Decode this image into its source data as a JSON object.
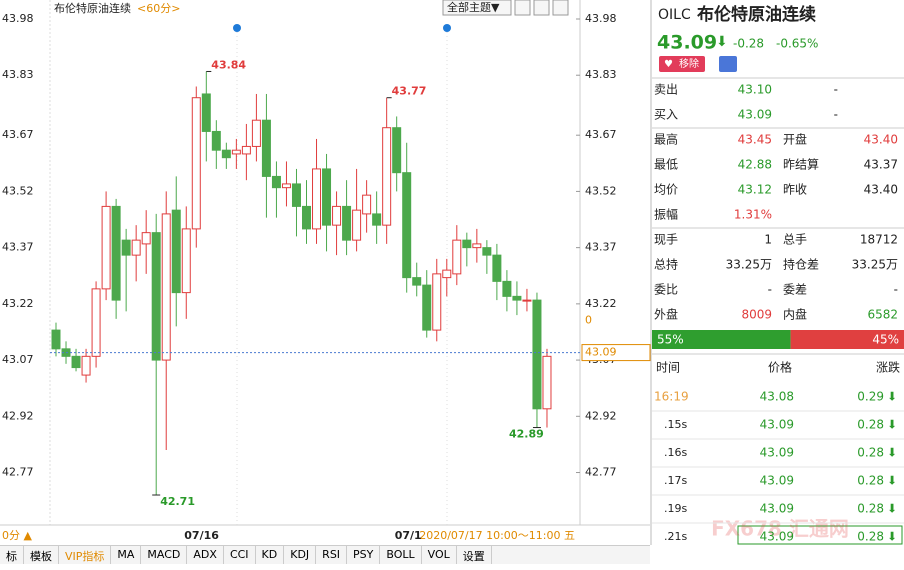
{
  "chart_data": {
    "type": "candlestick",
    "title": "布伦特原油连续",
    "period": "<60分>",
    "theme_button": "全部主题▼",
    "categories": [
      null,
      null,
      null,
      null,
      null,
      null,
      null,
      null,
      null,
      null,
      null,
      null,
      null,
      null,
      "07/16",
      null,
      null,
      null,
      null,
      null,
      null,
      null,
      null,
      null,
      null,
      null,
      null,
      null,
      null,
      null,
      null,
      null,
      null,
      null,
      null,
      "07/1",
      null,
      null,
      null,
      null,
      null,
      null,
      null,
      null,
      null,
      null,
      null,
      null,
      null,
      null
    ],
    "open": [
      43.15,
      43.1,
      43.08,
      43.03,
      43.08,
      43.26,
      43.48,
      43.39,
      43.35,
      43.38,
      43.41,
      43.07,
      43.47,
      43.25,
      43.42,
      43.78,
      43.68,
      43.63,
      43.62,
      43.62,
      43.64,
      43.71,
      43.56,
      43.53,
      43.54,
      43.48,
      43.42,
      43.58,
      43.43,
      43.48,
      43.39,
      43.46,
      43.46,
      43.43,
      43.69,
      43.57,
      43.29,
      43.27,
      43.15,
      43.29,
      43.3,
      43.39,
      43.37,
      43.37,
      43.35,
      43.28,
      43.24,
      43.23,
      43.23,
      42.94
    ],
    "high": [
      43.17,
      43.12,
      43.1,
      43.1,
      43.28,
      43.52,
      43.5,
      43.42,
      43.43,
      43.47,
      43.46,
      43.52,
      43.56,
      43.48,
      43.8,
      43.84,
      43.71,
      43.65,
      43.66,
      43.7,
      43.78,
      43.78,
      43.6,
      43.6,
      43.58,
      43.55,
      43.66,
      43.62,
      43.52,
      43.55,
      43.58,
      43.55,
      43.52,
      43.77,
      43.72,
      43.65,
      43.33,
      43.31,
      43.34,
      43.34,
      43.43,
      43.41,
      43.42,
      43.39,
      43.38,
      43.31,
      43.28,
      43.26,
      43.25,
      43.1
    ],
    "low": [
      43.08,
      43.06,
      43.04,
      43.01,
      43.05,
      43.23,
      43.18,
      43.2,
      43.28,
      43.3,
      42.71,
      42.83,
      43.16,
      43.18,
      43.37,
      43.6,
      43.58,
      43.58,
      43.58,
      43.55,
      43.6,
      43.45,
      43.45,
      43.48,
      43.4,
      43.38,
      43.38,
      43.36,
      43.35,
      43.35,
      43.36,
      43.41,
      43.38,
      43.38,
      43.52,
      43.25,
      43.24,
      43.13,
      43.12,
      43.24,
      43.27,
      43.32,
      43.33,
      43.3,
      43.23,
      43.2,
      43.19,
      43.2,
      42.89,
      42.89
    ],
    "close": [
      43.1,
      43.08,
      43.05,
      43.08,
      43.26,
      43.48,
      43.23,
      43.35,
      43.39,
      43.41,
      43.07,
      43.46,
      43.25,
      43.42,
      43.77,
      43.68,
      43.63,
      43.61,
      43.63,
      43.64,
      43.71,
      43.56,
      43.53,
      43.54,
      43.48,
      43.42,
      43.58,
      43.43,
      43.48,
      43.39,
      43.47,
      43.51,
      43.43,
      43.69,
      43.57,
      43.29,
      43.27,
      43.15,
      43.3,
      43.31,
      43.39,
      43.37,
      43.38,
      43.35,
      43.28,
      43.24,
      43.23,
      43.23,
      42.94,
      43.08
    ],
    "up_color": "#e03c3c",
    "down_color": "#4ca84c",
    "ylim": [
      42.63,
      43.98
    ],
    "yticks": [
      43.98,
      43.83,
      43.67,
      43.52,
      43.37,
      43.22,
      43.07,
      42.92,
      42.77
    ],
    "high_marks": [
      "43.84",
      "43.77"
    ],
    "low_marks": [
      "42.71",
      "42.89"
    ],
    "last_price": 43.09,
    "aux_label": "0",
    "crosshair_label": "2020/07/17 10:00～11:00 五",
    "period_left": "0分 ▲",
    "toolbar": [
      "标",
      "模板",
      "VIP指标",
      "MA",
      "MACD",
      "ADX",
      "CCI",
      "KD",
      "KDJ",
      "RSI",
      "PSY",
      "BOLL",
      "VOL",
      "设置"
    ]
  },
  "quote": {
    "symbol": "OILC",
    "name": "布伦特原油连续",
    "price": "43.09",
    "change": "-0.28",
    "pct": "-0.65%",
    "remove": "移除",
    "rows": [
      {
        "cells": [
          "卖出",
          "43.10",
          "-"
        ],
        "colors": [
          "#2a9a2a",
          "#222"
        ]
      },
      {
        "cells": [
          "买入",
          "43.09",
          "-"
        ],
        "colors": [
          "#2a9a2a",
          "#222"
        ]
      },
      {
        "cells": [
          "最高",
          "43.45",
          "开盘",
          "43.40"
        ],
        "colors": [
          "#e03c3c",
          "#e03c3c"
        ]
      },
      {
        "cells": [
          "最低",
          "42.88",
          "昨结算",
          "43.37"
        ],
        "colors": [
          "#2a9a2a",
          "#222"
        ]
      },
      {
        "cells": [
          "均价",
          "43.12",
          "昨收",
          "43.40"
        ],
        "colors": [
          "#2a9a2a",
          "#222"
        ]
      },
      {
        "cells": [
          "振幅",
          "1.31%"
        ],
        "colors": [
          "#e03c3c"
        ]
      },
      {
        "cells": [
          "现手",
          "1",
          "总手",
          "18712"
        ],
        "colors": [
          "#222",
          "#222"
        ]
      },
      {
        "cells": [
          "总持",
          "33.25万",
          "持仓差",
          "33.25万"
        ],
        "colors": [
          "#222",
          "#222"
        ]
      },
      {
        "cells": [
          "委比",
          "-",
          "委差",
          "-"
        ],
        "colors": [
          "#222",
          "#222"
        ]
      },
      {
        "cells": [
          "外盘",
          "8009",
          "内盘",
          "6582"
        ],
        "colors": [
          "#e03c3c",
          "#2a9a2a"
        ]
      }
    ],
    "ratio": {
      "values": [
        55,
        45
      ],
      "value_labels": [
        "55%",
        "45%"
      ],
      "colors": [
        "#2f9e2f",
        "#e04040"
      ]
    },
    "trades_header": [
      "时间",
      "价格",
      "涨跌"
    ],
    "trades": [
      [
        "16:19",
        "43.08",
        "0.29"
      ],
      [
        ".15s",
        "43.09",
        "0.28"
      ],
      [
        ".16s",
        "43.09",
        "0.28"
      ],
      [
        ".17s",
        "43.09",
        "0.28"
      ],
      [
        ".19s",
        "43.09",
        "0.28"
      ],
      [
        ".21s",
        "43.09",
        "0.28"
      ]
    ],
    "watermark": "FX678 汇通网"
  }
}
